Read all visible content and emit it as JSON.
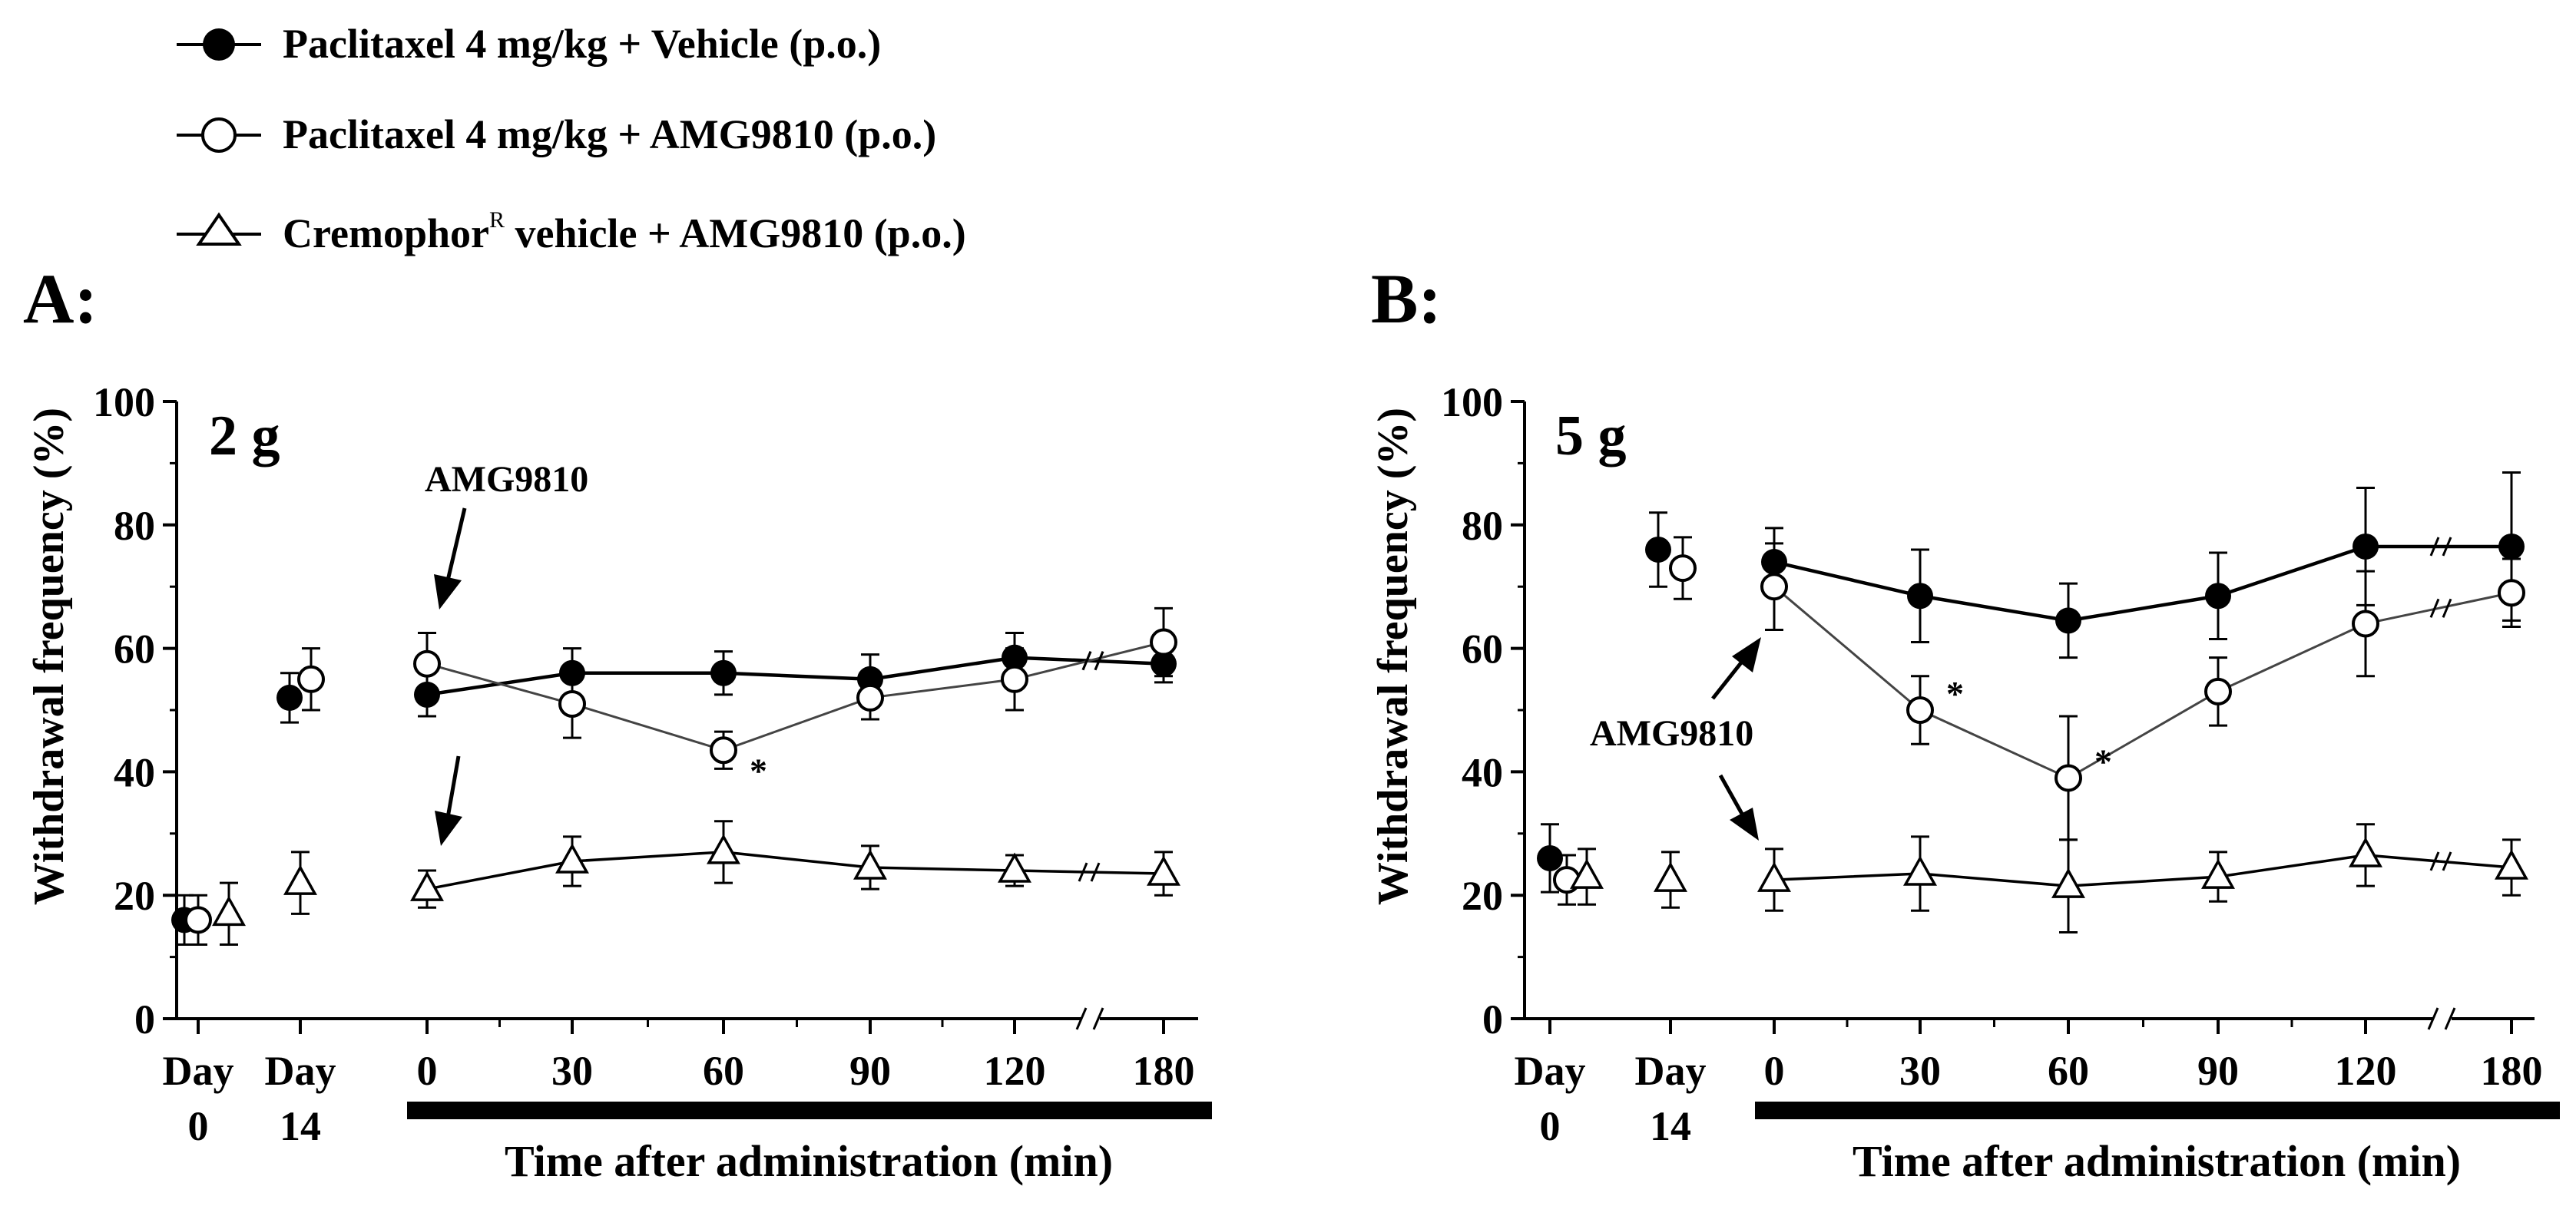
{
  "legend": {
    "items": [
      {
        "marker": "filled-circle",
        "label": "Paclitaxel 4 mg/kg + Vehicle (p.o.)"
      },
      {
        "marker": "open-circle",
        "label": "Paclitaxel 4 mg/kg + AMG9810 (p.o.)"
      },
      {
        "marker": "open-triangle",
        "label_main": "Cremophor",
        "label_sup": "R",
        "label_rest": " vehicle + AMG9810 (p.o.)"
      }
    ]
  },
  "chart_data": [
    {
      "type": "line",
      "panel_label": "A:",
      "annotation": "2 g",
      "arrow_label": "AMG9810",
      "ylabel": "Withdrawal frequency (%)",
      "xlabel": "Time after administration (min)",
      "ylim": [
        0,
        100
      ],
      "yticks": [
        0,
        20,
        40,
        60,
        80,
        100
      ],
      "xtick_labels": [
        {
          "line1": "Day",
          "line2": "0"
        },
        {
          "line1": "Day",
          "line2": "14"
        },
        {
          "line1": "0"
        },
        {
          "line1": "30"
        },
        {
          "line1": "60"
        },
        {
          "line1": "90"
        },
        {
          "line1": "120"
        },
        {
          "line1": "180"
        }
      ],
      "series": [
        {
          "name": "Paclitaxel 4 mg/kg + Vehicle (p.o.)",
          "marker": "filled-circle",
          "values": [
            16,
            52,
            52.5,
            56,
            56,
            55,
            58.5,
            57.5
          ],
          "err": [
            4,
            4,
            3.5,
            4,
            3.5,
            4,
            4,
            3
          ]
        },
        {
          "name": "Paclitaxel 4 mg/kg + AMG9810 (p.o.)",
          "marker": "open-circle",
          "values": [
            16,
            55,
            57.5,
            51,
            43.5,
            52,
            55,
            61
          ],
          "err": [
            4,
            5,
            5,
            5.5,
            3,
            3.5,
            5,
            5.5
          ]
        },
        {
          "name": "Cremophor vehicle + AMG9810 (p.o.)",
          "marker": "open-triangle",
          "values": [
            17,
            22,
            21,
            25.5,
            27,
            24.5,
            24,
            23.5
          ],
          "err": [
            5,
            5,
            3,
            4,
            5,
            3.5,
            2.5,
            3.5
          ]
        }
      ],
      "significance": [
        {
          "series": 1,
          "point": 4,
          "label": "*"
        }
      ]
    },
    {
      "type": "line",
      "panel_label": "B:",
      "annotation": "5 g",
      "arrow_label": "AMG9810",
      "ylabel": "Withdrawal frequency (%)",
      "xlabel": "Time after administration (min)",
      "ylim": [
        0,
        100
      ],
      "yticks": [
        0,
        20,
        40,
        60,
        80,
        100
      ],
      "xtick_labels": [
        {
          "line1": "Day",
          "line2": "0"
        },
        {
          "line1": "Day",
          "line2": "14"
        },
        {
          "line1": "0"
        },
        {
          "line1": "30"
        },
        {
          "line1": "60"
        },
        {
          "line1": "90"
        },
        {
          "line1": "120"
        },
        {
          "line1": "180"
        }
      ],
      "series": [
        {
          "name": "Paclitaxel 4 mg/kg + Vehicle (p.o.)",
          "marker": "filled-circle",
          "values": [
            26,
            76,
            74,
            68.5,
            64.5,
            68.5,
            76.5,
            76.5
          ],
          "err": [
            5.5,
            6,
            5.5,
            7.5,
            6,
            7,
            9.5,
            12
          ]
        },
        {
          "name": "Paclitaxel 4 mg/kg + AMG9810 (p.o.)",
          "marker": "open-circle",
          "values": [
            22.5,
            73,
            70,
            50,
            39,
            53,
            64,
            69
          ],
          "err": [
            4,
            5,
            7,
            5.5,
            10,
            5.5,
            8.5,
            5.5
          ]
        },
        {
          "name": "Cremophor vehicle + AMG9810 (p.o.)",
          "marker": "open-triangle",
          "values": [
            23,
            22.5,
            22.5,
            23.5,
            21.5,
            23,
            26.5,
            24.5
          ],
          "err": [
            4.5,
            4.5,
            5,
            6,
            7.5,
            4,
            5,
            4.5
          ]
        }
      ],
      "significance": [
        {
          "series": 1,
          "point": 3,
          "label": "*"
        },
        {
          "series": 1,
          "point": 4,
          "label": "*"
        }
      ]
    }
  ]
}
